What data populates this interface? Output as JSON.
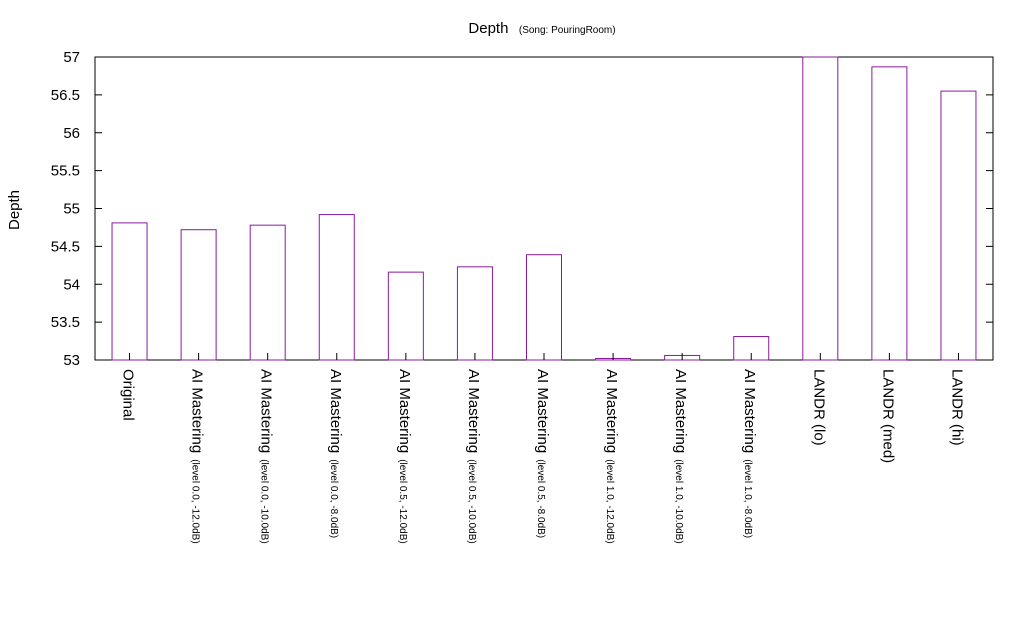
{
  "chart_data": {
    "type": "bar",
    "title": "Depth",
    "subtitle": "(Song: PouringRoom)",
    "xlabel": "",
    "ylabel": "Depth",
    "ylim": [
      53,
      57
    ],
    "yticks": [
      "53",
      "53.5",
      "54",
      "54.5",
      "55",
      "55.5",
      "56",
      "56.5",
      "57"
    ],
    "grid": false,
    "legend": "none",
    "bar_style": "outline",
    "bar_color": "#8b1a9e",
    "categories": [
      {
        "main": "Original",
        "sub": ""
      },
      {
        "main": "AI Mastering",
        "sub": "(level 0.0, -12.0dB)"
      },
      {
        "main": "AI Mastering",
        "sub": "(level 0.0, -10.0dB)"
      },
      {
        "main": "AI Mastering",
        "sub": "(level 0.0, -8.0dB)"
      },
      {
        "main": "AI Mastering",
        "sub": "(level 0.5, -12.0dB)"
      },
      {
        "main": "AI Mastering",
        "sub": "(level 0.5, -10.0dB)"
      },
      {
        "main": "AI Mastering",
        "sub": "(level 0.5, -8.0dB)"
      },
      {
        "main": "AI Mastering",
        "sub": "(level 1.0, -12.0dB)"
      },
      {
        "main": "AI Mastering",
        "sub": "(level 1.0, -10.0dB)"
      },
      {
        "main": "AI Mastering",
        "sub": "(level 1.0, -8.0dB)"
      },
      {
        "main": "LANDR (lo)",
        "sub": ""
      },
      {
        "main": "LANDR (med)",
        "sub": ""
      },
      {
        "main": "LANDR (hi)",
        "sub": ""
      }
    ],
    "values": [
      54.81,
      54.72,
      54.78,
      54.92,
      54.16,
      54.23,
      54.39,
      53.02,
      53.06,
      53.31,
      57.0,
      56.87,
      56.55
    ]
  }
}
